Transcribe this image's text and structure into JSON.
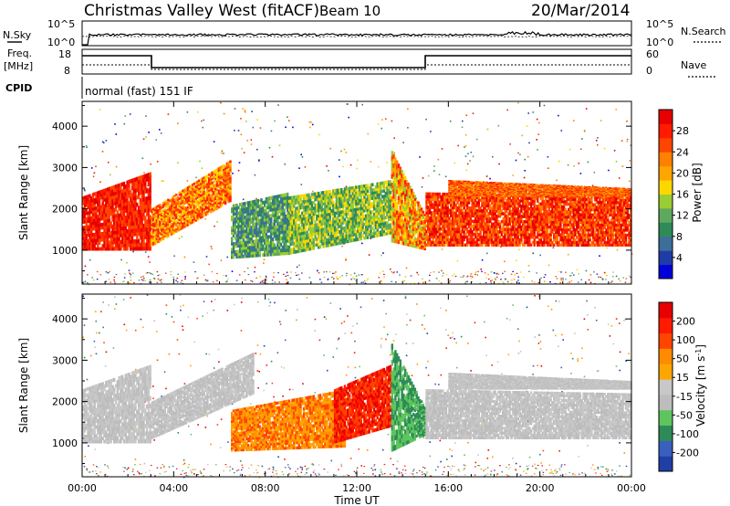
{
  "header": {
    "title": "Christmas Valley West (fitACF)",
    "beam": "Beam 10",
    "date": "20/Mar/2014"
  },
  "top_panels": {
    "nsky_label": "N.Sky",
    "nsearch_label": "N.Search",
    "noise_tick_high": "10^5",
    "noise_tick_low": "10^0",
    "freq_label_1": "Freq.",
    "freq_label_2": "[MHz]",
    "freq_ticks": [
      "18",
      "8"
    ],
    "nave_label": "Nave",
    "nave_ticks": [
      "60",
      "0"
    ],
    "cpid_label": "CPID",
    "cpid_text": "normal (fast) 151 IF"
  },
  "chart_data": [
    {
      "type": "heatmap",
      "name_shown": "Power [dB]",
      "ylabel": "Slant Range [km]",
      "xlabel": "Time UT",
      "xlim": [
        0,
        24
      ],
      "ylim": [
        180,
        4600
      ],
      "x_ticks": [
        "00:00",
        "04:00",
        "08:00",
        "12:00",
        "16:00",
        "20:00",
        "00:00"
      ],
      "y_ticks": [
        1000,
        2000,
        3000,
        4000
      ],
      "colorbar": {
        "label": "Power [dB]",
        "ticks": [
          "28",
          "24",
          "20",
          "16",
          "12",
          "8",
          "4"
        ],
        "colors": [
          "#0000dd",
          "#1e3ca8",
          "#3c6e9a",
          "#2e8b57",
          "#5fa85f",
          "#9acd32",
          "#ffd700",
          "#ffa500",
          "#ff7f00",
          "#ff4500",
          "#ff1a00",
          "#e60000"
        ]
      },
      "regions": [
        {
          "t0": 0.0,
          "t1": 3.0,
          "r_bottom": [
            1000,
            1000
          ],
          "r_top": [
            2300,
            2900
          ],
          "level": [
            9,
            11
          ]
        },
        {
          "t0": 3.0,
          "t1": 6.5,
          "r_bottom": [
            1100,
            2200
          ],
          "r_top": [
            2000,
            3200
          ],
          "level": [
            6,
            10
          ]
        },
        {
          "t0": 6.5,
          "t1": 9.0,
          "r_bottom": [
            800,
            900
          ],
          "r_top": [
            2100,
            2400
          ],
          "level": [
            2,
            5
          ]
        },
        {
          "t0": 9.0,
          "t1": 13.5,
          "r_bottom": [
            900,
            1400
          ],
          "r_top": [
            2300,
            2700
          ],
          "level": [
            3,
            6
          ]
        },
        {
          "t0": 13.5,
          "t1": 15.0,
          "r_bottom": [
            1200,
            1000
          ],
          "r_top": [
            3400,
            1800
          ],
          "level": [
            5,
            10
          ]
        },
        {
          "t0": 15.0,
          "t1": 24.0,
          "r_bottom": [
            1100,
            1100
          ],
          "r_top": [
            2400,
            2300
          ],
          "level": [
            8,
            11
          ]
        },
        {
          "t0": 16.0,
          "t1": 24.0,
          "r_bottom": [
            2300,
            2300
          ],
          "r_top": [
            2700,
            2500
          ],
          "level": [
            7,
            10
          ]
        }
      ]
    },
    {
      "type": "heatmap",
      "name_shown": "Velocity [m s-1]",
      "ylabel": "Slant Range [km]",
      "xlabel": "Time UT",
      "xlim": [
        0,
        24
      ],
      "ylim": [
        180,
        4600
      ],
      "x_ticks": [
        "00:00",
        "04:00",
        "08:00",
        "12:00",
        "16:00",
        "20:00",
        "00:00"
      ],
      "y_ticks": [
        1000,
        2000,
        3000,
        4000
      ],
      "colorbar": {
        "label_main": "Velocity [m s",
        "label_exp": "-1",
        "label_end": "]",
        "ticks": [
          "200",
          "100",
          "50",
          "15",
          "-15",
          "-50",
          "-100",
          "-200"
        ],
        "colors": [
          "#1f3fa6",
          "#3a5fbf",
          "#2e8b57",
          "#5ec45e",
          "#bdbdbd",
          "#c8c8c8",
          "#ffa500",
          "#ff8c00",
          "#ff4500",
          "#ff1a00",
          "#e60000"
        ]
      },
      "regions": [
        {
          "t0": 0.0,
          "t1": 3.0,
          "r_bottom": [
            1000,
            1000
          ],
          "r_top": [
            2300,
            2900
          ],
          "level": [
            4,
            5
          ]
        },
        {
          "t0": 3.0,
          "t1": 7.5,
          "r_bottom": [
            1100,
            2200
          ],
          "r_top": [
            2000,
            3200
          ],
          "level": [
            4,
            5
          ]
        },
        {
          "t0": 6.5,
          "t1": 11.5,
          "r_bottom": [
            800,
            900
          ],
          "r_top": [
            1800,
            2300
          ],
          "level": [
            6,
            8
          ]
        },
        {
          "t0": 11.0,
          "t1": 13.5,
          "r_bottom": [
            1000,
            1400
          ],
          "r_top": [
            2300,
            2900
          ],
          "level": [
            8,
            10
          ]
        },
        {
          "t0": 13.5,
          "t1": 15.0,
          "r_bottom": [
            800,
            1200
          ],
          "r_top": [
            3400,
            1800
          ],
          "level": [
            2,
            3
          ]
        },
        {
          "t0": 15.0,
          "t1": 24.0,
          "r_bottom": [
            1100,
            1100
          ],
          "r_top": [
            2300,
            2200
          ],
          "level": [
            4,
            5
          ]
        },
        {
          "t0": 16.0,
          "t1": 24.0,
          "r_bottom": [
            2300,
            2300
          ],
          "r_top": [
            2700,
            2500
          ],
          "level": [
            4,
            5
          ]
        }
      ]
    }
  ]
}
